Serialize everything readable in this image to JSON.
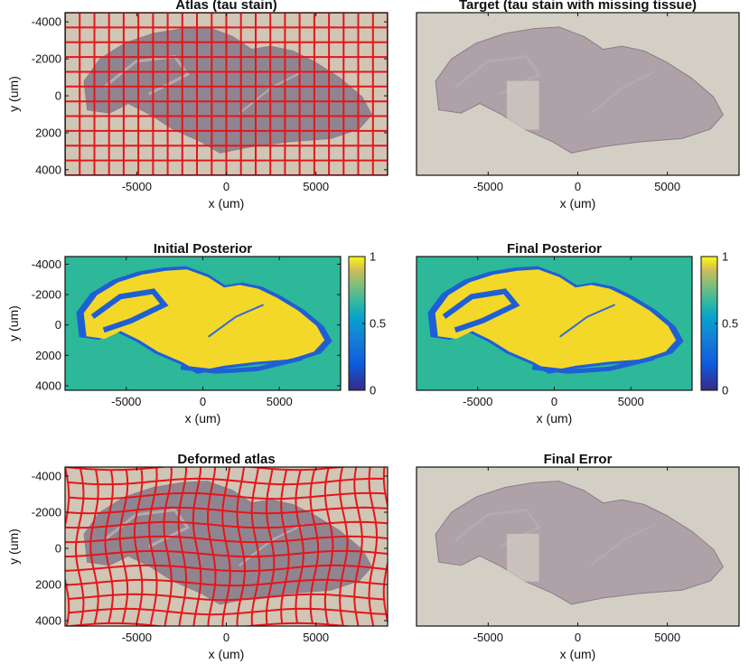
{
  "chart_data": [
    {
      "type": "image",
      "title": "Atlas (tau stain)",
      "xlabel": "x (um)",
      "ylabel": "y (um)",
      "xlim": [
        -9000,
        9000
      ],
      "ylim": [
        -4500,
        4300
      ],
      "y_reversed": true,
      "xticks": [
        -5000,
        0,
        5000
      ],
      "yticks": [
        -4000,
        -2000,
        0,
        2000,
        4000
      ],
      "overlay": "regular red deformation grid",
      "colors": {
        "background": "#cfc6b5",
        "tissue": "#8f8590",
        "grid": "#e8141a"
      }
    },
    {
      "type": "image",
      "title": "Target (tau stain with missing tissue)",
      "xlabel": "x (um)",
      "xlim": [
        -9000,
        9000
      ],
      "ylim": [
        -4500,
        4300
      ],
      "y_reversed": true,
      "xticks": [
        -5000,
        0,
        5000
      ],
      "colors": {
        "background": "#d4cfc5",
        "tissue": "#a899a2"
      }
    },
    {
      "type": "heatmap",
      "title": "Initial Posterior",
      "xlabel": "x (um)",
      "ylabel": "y (um)",
      "xlim": [
        -9000,
        9000
      ],
      "ylim": [
        -4500,
        4300
      ],
      "y_reversed": true,
      "xticks": [
        -5000,
        0,
        5000
      ],
      "yticks": [
        -4000,
        -2000,
        0,
        2000,
        4000
      ],
      "colorbar": {
        "min": 0,
        "max": 1,
        "ticks": [
          "1",
          "0.5",
          "0"
        ],
        "colormap": "parula"
      },
      "colors": {
        "background": "#2db89a",
        "tissue": "#f4d829",
        "edges": "#1f5fd6"
      }
    },
    {
      "type": "heatmap",
      "title": "Final Posterior",
      "xlabel": "x (um)",
      "xlim": [
        -9000,
        9000
      ],
      "ylim": [
        -4500,
        4300
      ],
      "y_reversed": true,
      "xticks": [
        -5000,
        0,
        5000
      ],
      "colorbar": {
        "min": 0,
        "max": 1,
        "ticks": [
          "1",
          "0.5",
          "0"
        ],
        "colormap": "parula"
      },
      "colors": {
        "background": "#2db89a",
        "tissue": "#f4d829",
        "edges": "#1f5fd6"
      }
    },
    {
      "type": "image",
      "title": "Deformed atlas",
      "xlabel": "x (um)",
      "ylabel": "y (um)",
      "xlim": [
        -9000,
        9000
      ],
      "ylim": [
        -4500,
        4300
      ],
      "y_reversed": true,
      "xticks": [
        -5000,
        0,
        5000
      ],
      "yticks": [
        -4000,
        -2000,
        0,
        2000,
        4000
      ],
      "overlay": "warped red deformation grid",
      "colors": {
        "background": "#cfc6b5",
        "tissue": "#8f8590",
        "grid": "#e8141a"
      }
    },
    {
      "type": "image",
      "title": "Final Error",
      "xlabel": "x (um)",
      "xlim": [
        -9000,
        9000
      ],
      "ylim": [
        -4500,
        4300
      ],
      "y_reversed": true,
      "xticks": [
        -5000,
        0,
        5000
      ],
      "colors": {
        "background": "#d4cfc5",
        "tissue": "#a899a2"
      }
    }
  ]
}
